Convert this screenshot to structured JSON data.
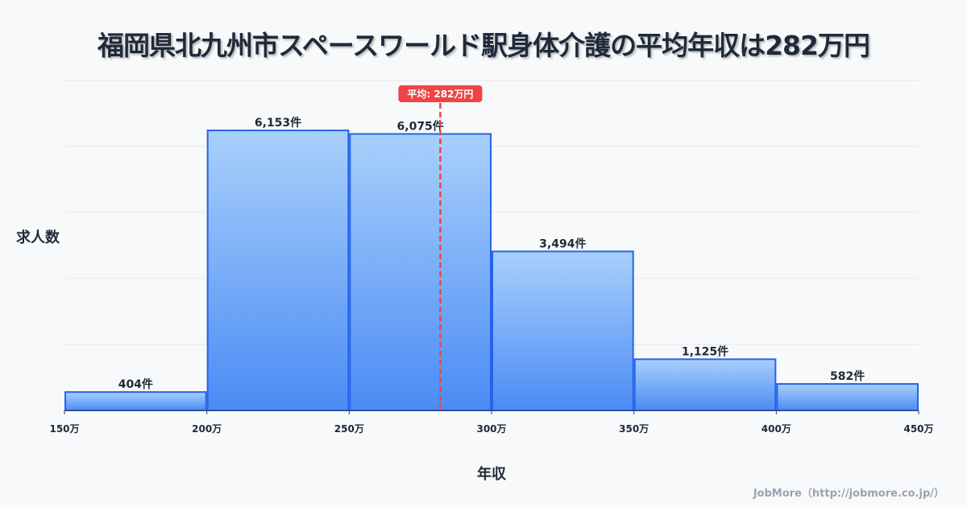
{
  "chart_data": {
    "type": "bar",
    "title": "福岡県北九州市スペースワールド駅身体介護の平均年収は282万円",
    "xlabel": "年収",
    "ylabel": "求人数",
    "bin_edges": [
      150,
      200,
      250,
      300,
      350,
      400,
      450
    ],
    "x_tick_labels": [
      "150万",
      "200万",
      "250万",
      "300万",
      "350万",
      "400万",
      "450万"
    ],
    "values": [
      404,
      6153,
      6075,
      3494,
      1125,
      582
    ],
    "value_labels": [
      "404件",
      "6,153件",
      "6,075件",
      "3,494件",
      "1,125件",
      "582件"
    ],
    "xlim": [
      150,
      450
    ],
    "ylim": [
      0,
      7250
    ],
    "grid": true,
    "mean": {
      "value": 282,
      "label": "平均: 282万円"
    },
    "colors": {
      "bar_top": "#a9d0fb",
      "bar_bottom": "#4b8bf5",
      "bar_stroke": "#2563eb",
      "mean_line": "#ef4444"
    }
  },
  "credit": "JobMore（http://jobmore.co.jp/）"
}
